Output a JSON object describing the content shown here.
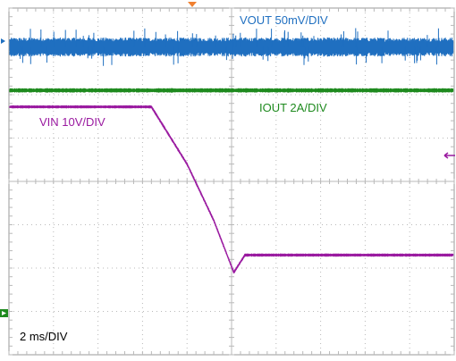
{
  "chart_data": {
    "type": "line",
    "title": "",
    "grid": true,
    "x_divisions": 10,
    "y_divisions": 8,
    "timebase_label": "2 ms/DIV",
    "x_per_div_ms": 2,
    "series": [
      {
        "name": "VOUT 50mV/DIV",
        "color": "#1f6fc0",
        "scale_label": "50mV/DIV",
        "noise_band_div": 0.42,
        "x": [
          0,
          10
        ],
        "y": [
          7.1,
          7.1
        ]
      },
      {
        "name": "IOUT 2A/DIV",
        "color": "#1e8a1e",
        "scale_label": "2A/DIV",
        "noise_band_div": 0.08,
        "x": [
          0,
          10
        ],
        "y": [
          6.1,
          6.1
        ]
      },
      {
        "name": "VIN 10V/DIV",
        "color": "#9a1aa0",
        "scale_label": "10V/DIV",
        "noise_band_div": 0.05,
        "x": [
          0,
          3.2,
          4.0,
          4.6,
          5.05,
          5.3,
          10
        ],
        "y": [
          5.72,
          5.72,
          4.4,
          3.1,
          1.9,
          2.3,
          2.3
        ]
      }
    ]
  },
  "labels": {
    "vout": "VOUT 50mV/DIV",
    "iout": "IOUT 2A/DIV",
    "vin": "VIN 10V/DIV",
    "timebase": "2 ms/DIV"
  },
  "colors": {
    "grid": "#b9b9b9",
    "frame": "#9a9a9a",
    "trigger_marker": "#f08030",
    "vout": "#1f6fc0",
    "iout": "#1e8a1e",
    "vin": "#9a1aa0"
  }
}
